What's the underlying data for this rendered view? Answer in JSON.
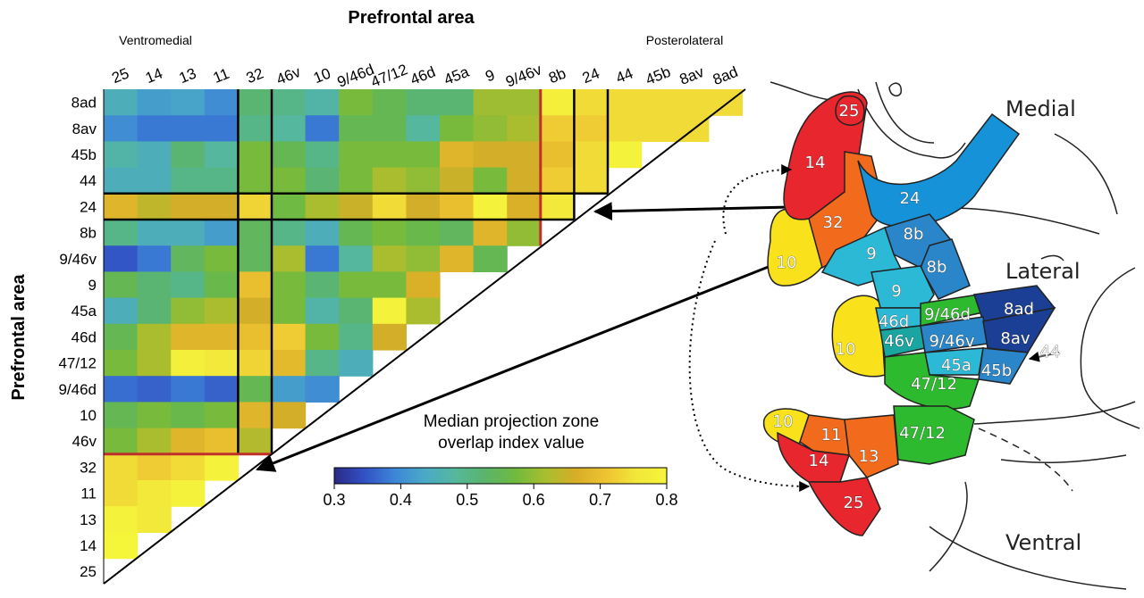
{
  "chart_data": {
    "type": "heatmap",
    "title": "Prefrontal area",
    "ylabel": "Prefrontal area",
    "x_left_note": "Ventromedial",
    "x_right_note": "Posterolateral",
    "x_categories": [
      "25",
      "14",
      "13",
      "11",
      "32",
      "46v",
      "10",
      "9/46d",
      "47/12",
      "46d",
      "45a",
      "9",
      "9/46v",
      "8b",
      "24",
      "44",
      "45b",
      "8av",
      "8ad"
    ],
    "y_categories": [
      "8ad",
      "8av",
      "45b",
      "44",
      "24",
      "8b",
      "9/46v",
      "9",
      "45a",
      "46d",
      "47/12",
      "9/46d",
      "10",
      "46v",
      "32",
      "11",
      "13",
      "14",
      "25"
    ],
    "values": [
      [
        0.45,
        0.42,
        0.43,
        0.4,
        0.52,
        0.5,
        0.47,
        0.58,
        0.55,
        0.52,
        0.52,
        0.61,
        0.61,
        0.78,
        0.74,
        0.74,
        0.74,
        0.74,
        0.74
      ],
      [
        0.4,
        0.38,
        0.38,
        0.38,
        0.5,
        0.48,
        0.38,
        0.55,
        0.55,
        0.48,
        0.58,
        0.6,
        0.62,
        0.72,
        0.72,
        0.74,
        0.74,
        0.74
      ],
      [
        0.47,
        0.45,
        0.52,
        0.48,
        0.58,
        0.55,
        0.5,
        0.58,
        0.58,
        0.58,
        0.68,
        0.66,
        0.66,
        0.7,
        0.74,
        0.79
      ],
      [
        0.45,
        0.45,
        0.5,
        0.5,
        0.58,
        0.58,
        0.52,
        0.58,
        0.62,
        0.6,
        0.65,
        0.58,
        0.66,
        0.72,
        0.74
      ],
      [
        0.68,
        0.64,
        0.66,
        0.66,
        0.73,
        0.57,
        0.62,
        0.65,
        0.74,
        0.66,
        0.7,
        0.79,
        0.67,
        0.76
      ],
      [
        0.5,
        0.45,
        0.45,
        0.42,
        0.54,
        0.5,
        0.45,
        0.55,
        0.58,
        0.56,
        0.54,
        0.68,
        0.6
      ],
      [
        0.35,
        0.38,
        0.54,
        0.58,
        0.54,
        0.62,
        0.38,
        0.48,
        0.62,
        0.6,
        0.68,
        0.55
      ],
      [
        0.55,
        0.52,
        0.5,
        0.56,
        0.7,
        0.58,
        0.52,
        0.58,
        0.58,
        0.67
      ],
      [
        0.45,
        0.52,
        0.6,
        0.62,
        0.66,
        0.58,
        0.47,
        0.52,
        0.79,
        0.62
      ],
      [
        0.55,
        0.62,
        0.68,
        0.68,
        0.7,
        0.72,
        0.58,
        0.5,
        0.66
      ],
      [
        0.58,
        0.62,
        0.78,
        0.76,
        0.73,
        0.69,
        0.5,
        0.45
      ],
      [
        0.37,
        0.36,
        0.38,
        0.36,
        0.55,
        0.42,
        0.4
      ],
      [
        0.55,
        0.58,
        0.56,
        0.58,
        0.68,
        0.66
      ],
      [
        0.58,
        0.62,
        0.68,
        0.7,
        0.63
      ],
      [
        0.74,
        0.72,
        0.74,
        0.79
      ],
      [
        0.74,
        0.76,
        0.79
      ],
      [
        0.79,
        0.76
      ],
      [
        0.8
      ],
      []
    ],
    "colorbar": {
      "title_line1": "Median projection zone",
      "title_line2": "overlap index value",
      "range": [
        0.3,
        0.8
      ],
      "ticks": [
        "0.3",
        "0.4",
        "0.5",
        "0.6",
        "0.7",
        "0.8"
      ]
    },
    "colormap": [
      "#2b2a87",
      "#3251c4",
      "#3d86d8",
      "#4aaac6",
      "#55b89c",
      "#5bb46a",
      "#6fba3f",
      "#a8be2f",
      "#d7ad27",
      "#eec332",
      "#f2e73a",
      "#f5f53a"
    ],
    "black_group_boundaries_after_col": [
      3,
      13,
      14
    ],
    "red_group_boundaries": [
      "after-row-8b",
      "before-row-32"
    ],
    "grid": false
  },
  "brain_map": {
    "region_labels": {
      "medial": "Medial",
      "lateral": "Lateral",
      "ventral": "Ventral"
    },
    "area_labels": [
      "25",
      "14",
      "24",
      "32",
      "8b",
      "10",
      "9",
      "8b",
      "9",
      "46d",
      "9/46d",
      "8ad",
      "10",
      "46v",
      "9/46v",
      "8av",
      "44",
      "45a",
      "45b",
      "47/12",
      "10",
      "11",
      "14",
      "13",
      "47/12",
      "25"
    ],
    "colors": {
      "red": "#e8262d",
      "orange": "#f26b1d",
      "yellow": "#f9e11c",
      "blue": "#1692d8",
      "light_blue": "#2cb9d6",
      "mid_blue": "#2a86c8",
      "dark_blue": "#1b3f94",
      "green": "#2dba2e",
      "teal": "#1aa6a0"
    }
  }
}
